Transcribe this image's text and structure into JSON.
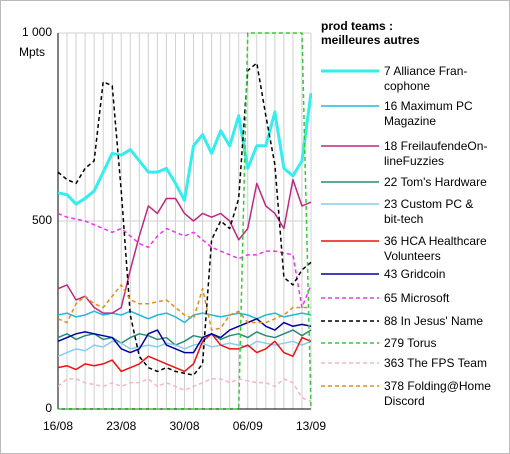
{
  "chart_data": {
    "type": "line",
    "legend_title": "prod teams :\nmeilleures autres",
    "y_unit_label": "Mpts",
    "categories": [
      "16/08",
      null,
      null,
      null,
      null,
      null,
      null,
      "23/08",
      null,
      null,
      null,
      null,
      null,
      null,
      "30/08",
      null,
      null,
      null,
      null,
      null,
      null,
      "06/09",
      null,
      null,
      null,
      null,
      null,
      null,
      "13/09"
    ],
    "ylim": [
      0,
      1000
    ],
    "yticks": [
      0,
      500,
      {
        "value": 1000,
        "label": "1 000"
      }
    ],
    "grid": true,
    "series": [
      {
        "name": "7 Alliance Fran-\ncophone",
        "color": "#33eeee",
        "width": 3,
        "dash": false,
        "values": [
          575,
          570,
          545,
          560,
          580,
          630,
          680,
          675,
          690,
          660,
          630,
          630,
          640,
          600,
          555,
          700,
          730,
          680,
          740,
          700,
          780,
          640,
          700,
          700,
          790,
          640,
          620,
          660,
          840
        ]
      },
      {
        "name": "16 Maximum PC\nMagazine",
        "color": "#22b8dd",
        "width": 1.5,
        "dash": false,
        "values": [
          250,
          255,
          245,
          250,
          260,
          250,
          255,
          250,
          260,
          250,
          240,
          250,
          255,
          245,
          230,
          250,
          255,
          250,
          245,
          250,
          255,
          250,
          240,
          250,
          255,
          245,
          250,
          255,
          250
        ]
      },
      {
        "name": "18 FreilaufendeOn-\nlineFuzzies",
        "color": "#c0287f",
        "width": 1.5,
        "dash": false,
        "values": [
          320,
          330,
          290,
          300,
          270,
          255,
          255,
          270,
          370,
          460,
          540,
          520,
          560,
          560,
          520,
          500,
          520,
          510,
          520,
          500,
          450,
          480,
          600,
          540,
          520,
          480,
          610,
          540,
          550
        ]
      },
      {
        "name": "22 Tom's Hardware",
        "color": "#2a8a7a",
        "width": 1.5,
        "dash": false,
        "values": [
          190,
          200,
          185,
          195,
          200,
          185,
          190,
          175,
          190,
          200,
          195,
          185,
          190,
          170,
          180,
          195,
          190,
          200,
          185,
          195,
          200,
          190,
          205,
          195,
          190,
          200,
          210,
          195,
          210
        ]
      },
      {
        "name": "23 Custom PC &\nbit-tech",
        "color": "#88ccee",
        "width": 1.5,
        "dash": false,
        "values": [
          140,
          150,
          160,
          155,
          170,
          165,
          180,
          175,
          160,
          165,
          170,
          165,
          175,
          170,
          160,
          170,
          175,
          165,
          170,
          175,
          170,
          165,
          180,
          175,
          170,
          175,
          180,
          170,
          180
        ]
      },
      {
        "name": "36 HCA Healthcare\nVolunteers",
        "color": "#ee1111",
        "width": 1.5,
        "dash": false,
        "values": [
          110,
          115,
          105,
          120,
          115,
          120,
          130,
          100,
          110,
          120,
          140,
          130,
          120,
          110,
          100,
          120,
          180,
          200,
          170,
          160,
          160,
          170,
          150,
          160,
          180,
          150,
          140,
          190,
          180
        ]
      },
      {
        "name": "43 Gridcoin",
        "color": "#0000a0",
        "width": 1.5,
        "dash": false,
        "values": [
          180,
          190,
          200,
          205,
          200,
          195,
          190,
          160,
          150,
          160,
          200,
          210,
          170,
          160,
          150,
          150,
          190,
          200,
          190,
          210,
          220,
          230,
          240,
          220,
          210,
          230,
          220,
          225,
          220
        ]
      },
      {
        "name": "65 Microsoft",
        "color": "#ee33ee",
        "width": 1.5,
        "dash": true,
        "values": [
          520,
          510,
          505,
          500,
          490,
          480,
          470,
          480,
          460,
          440,
          430,
          460,
          480,
          470,
          460,
          470,
          450,
          430,
          420,
          410,
          400,
          410,
          410,
          420,
          420,
          415,
          410,
          270,
          330
        ]
      },
      {
        "name": "88 In Jesus' Name",
        "color": "#000000",
        "width": 1.5,
        "dash": true,
        "values": [
          630,
          610,
          600,
          640,
          660,
          870,
          860,
          580,
          250,
          140,
          110,
          100,
          110,
          100,
          95,
          90,
          120,
          450,
          500,
          480,
          560,
          900,
          920,
          780,
          650,
          350,
          330,
          370,
          390
        ]
      },
      {
        "name": "279 Torus",
        "color": "#33cc33",
        "width": 1.5,
        "dash": true,
        "values": [
          0,
          0,
          0,
          0,
          0,
          0,
          0,
          0,
          0,
          0,
          0,
          0,
          0,
          0,
          0,
          0,
          0,
          0,
          0,
          0,
          0,
          1000,
          1000,
          1000,
          1000,
          1000,
          1000,
          1000,
          0
        ]
      },
      {
        "name": "363 The FPS Team",
        "color": "#f4b6c8",
        "width": 1.5,
        "dash": true,
        "values": [
          60,
          80,
          80,
          70,
          65,
          60,
          70,
          60,
          70,
          70,
          80,
          60,
          70,
          60,
          50,
          60,
          70,
          80,
          80,
          70,
          80,
          75,
          70,
          70,
          60,
          80,
          70,
          30,
          20
        ]
      },
      {
        "name": "378 Folding@Home\nDiscord",
        "color": "#e88a1a",
        "width": 1.5,
        "dash": true,
        "values": [
          240,
          230,
          280,
          300,
          280,
          270,
          300,
          330,
          290,
          280,
          280,
          285,
          290,
          270,
          250,
          240,
          320,
          210,
          215,
          250,
          260,
          230,
          230,
          230,
          240,
          250,
          270,
          270,
          270
        ]
      }
    ]
  }
}
